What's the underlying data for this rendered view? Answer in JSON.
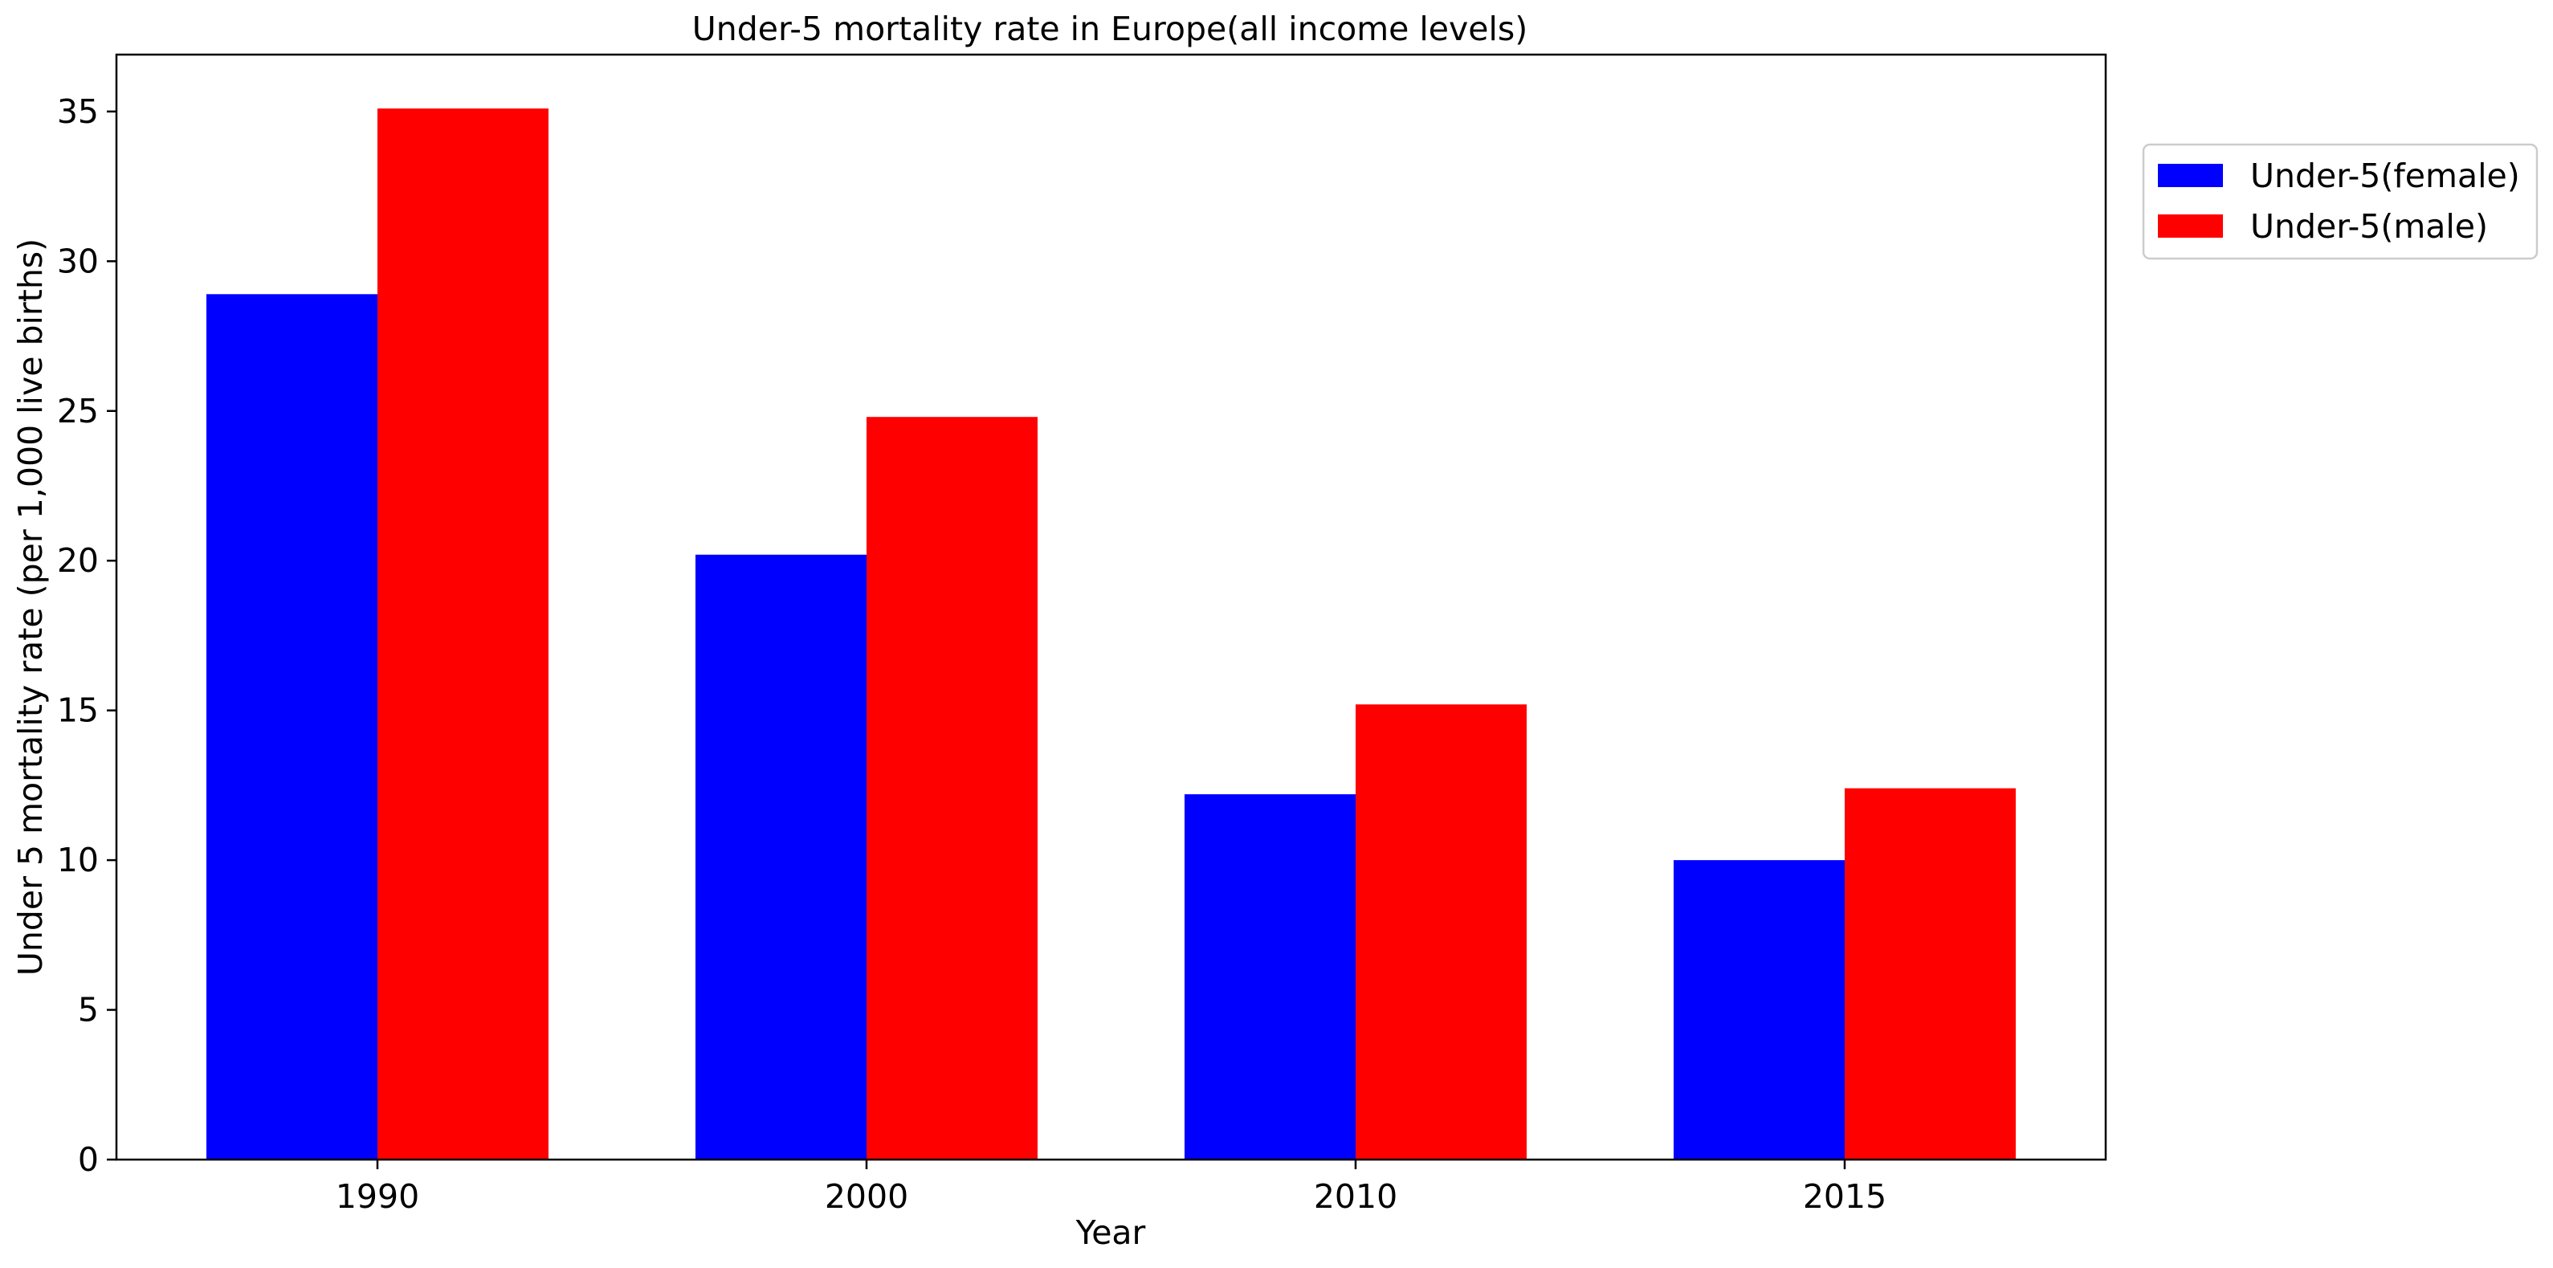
{
  "chart_data": {
    "type": "bar",
    "title": "Under-5 mortality rate in Europe(all income levels)",
    "xlabel": "Year",
    "ylabel": "Under 5 mortality rate (per 1,000 live births)",
    "categories": [
      "1990",
      "2000",
      "2010",
      "2015"
    ],
    "series": [
      {
        "name": "Under-5(female)",
        "color": "#0000ff",
        "values": [
          28.9,
          20.2,
          12.2,
          10.0
        ]
      },
      {
        "name": "Under-5(male)",
        "color": "#ff0000",
        "values": [
          35.1,
          24.8,
          15.2,
          12.4
        ]
      }
    ],
    "ylim": [
      0,
      36.9
    ],
    "yticks": [
      0,
      5,
      10,
      15,
      20,
      25,
      30,
      35
    ],
    "grid": false,
    "legend_position": "outside upper right"
  }
}
